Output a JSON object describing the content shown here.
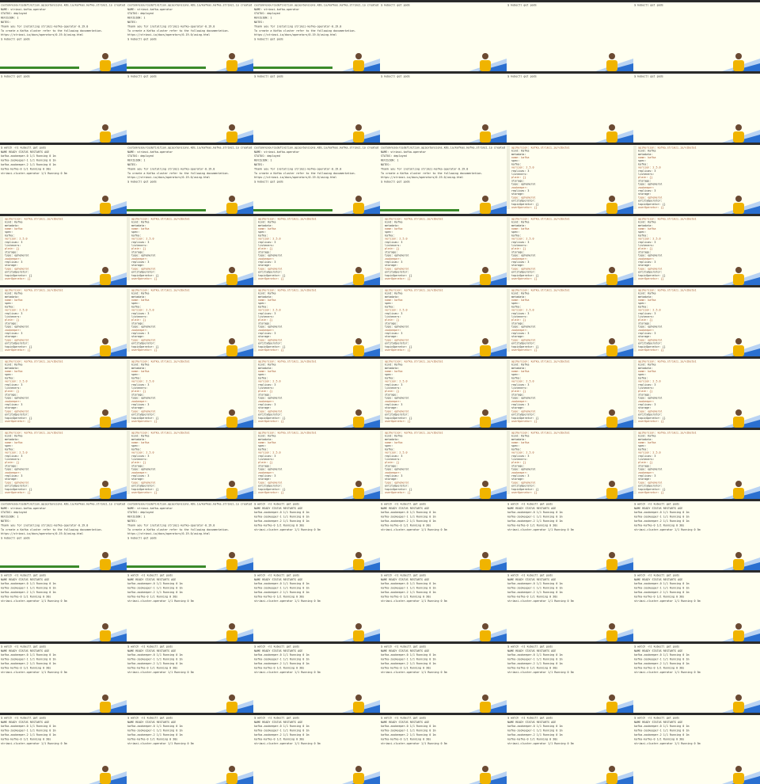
{
  "templates": {
    "terminal": {
      "lines": [
        "customresourcedefinition.apiextensions.k8s.io/kafkas.kafka.strimzi.io created",
        "NAME: strimzi-kafka-operator",
        "STATUS: deployed",
        "REVISION: 1",
        "NOTES:",
        "Thank you for installing strimzi-kafka-operator-0.19.0",
        "To create a Kafka cluster refer to the following documentation.",
        "https://strimzi.io/docs/operators/0.19.0/using.html",
        "$ kubectl get pods"
      ]
    },
    "editor": {
      "lines": [
        "apiVersion: kafka.strimzi.io/v1beta1",
        "kind: Kafka",
        "metadata:",
        "  name: kafka",
        "spec:",
        "  kafka:",
        "    version: 2.5.0",
        "    replicas: 3",
        "    listeners:",
        "      plain: {}",
        "    storage:",
        "      type: ephemeral",
        "  zookeeper:",
        "    replicas: 3",
        "    storage:",
        "      type: ephemeral",
        "  entityOperator:",
        "    topicOperator: {}",
        "    userOperator: {}"
      ]
    },
    "pods": {
      "lines": [
        "$ watch -n1 kubectl get pods",
        "NAME                        READY  STATUS   RESTARTS  AGE",
        "kafka-zookeeper-0           1/1    Running  0         1m",
        "kafka-zookeeper-1           1/1    Running  0         1m",
        "kafka-zookeeper-2           1/1    Running  0         1m",
        "kafka-kafka-0               1/1    Running  0         30s",
        "strimzi-cluster-operator    1/1    Running  0         5m"
      ]
    },
    "blank": {
      "lines": [
        "$ kubectl get pods"
      ]
    }
  },
  "frames": [
    "terminal",
    "terminal",
    "terminal",
    "blank",
    "blank",
    "blank",
    "blank",
    "blank",
    "blank",
    "blank",
    "blank",
    "blank",
    "pods",
    "terminal",
    "terminal",
    "terminal",
    "editor",
    "editor",
    "editor",
    "editor",
    "editor",
    "editor",
    "editor",
    "editor",
    "editor",
    "editor",
    "editor",
    "editor",
    "editor",
    "editor",
    "editor",
    "editor",
    "editor",
    "editor",
    "editor",
    "editor",
    "editor",
    "editor",
    "editor",
    "editor",
    "editor",
    "editor",
    "terminal",
    "terminal",
    "pods",
    "pods",
    "pods",
    "pods",
    "pods",
    "pods",
    "pods",
    "pods",
    "pods",
    "pods",
    "pods",
    "pods",
    "pods",
    "pods",
    "pods",
    "pods",
    "pods",
    "pods",
    "pods",
    "pods",
    "pods",
    "pods"
  ]
}
